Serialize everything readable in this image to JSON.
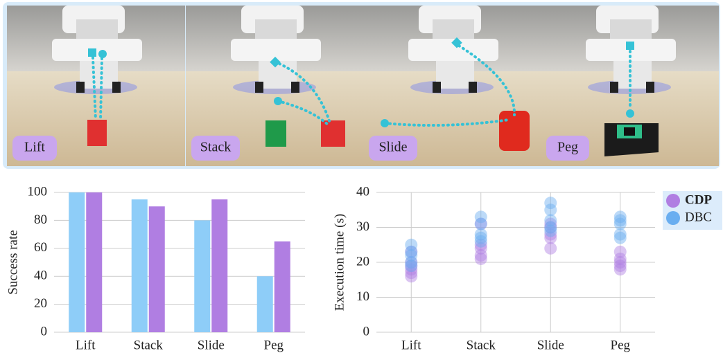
{
  "panels": [
    "Lift",
    "Stack",
    "Slide",
    "Peg"
  ],
  "chart_data": [
    {
      "type": "bar",
      "ylabel": "Success rate",
      "categories": [
        "Lift",
        "Stack",
        "Slide",
        "Peg"
      ],
      "series": [
        {
          "color": "#8ecdf8",
          "values": [
            100,
            95,
            80,
            40
          ]
        },
        {
          "color": "#b07ee2",
          "values": [
            100,
            90,
            95,
            65
          ]
        }
      ],
      "ylim": [
        0,
        100
      ],
      "yticks": [
        0,
        20,
        40,
        60,
        80,
        100
      ],
      "grid": true
    },
    {
      "type": "scatter",
      "ylabel": "Execution time (s)",
      "categories": [
        "Lift",
        "Stack",
        "Slide",
        "Peg"
      ],
      "series": [
        {
          "name": "CDP",
          "color": "#b07ee2",
          "values": [
            [
              23,
              20,
              19,
              18,
              17,
              16
            ],
            [
              31,
              25,
              24,
              22,
              21
            ],
            [
              31,
              30,
              28,
              27,
              24
            ],
            [
              23,
              21,
              20,
              19,
              18
            ]
          ]
        },
        {
          "name": "DBC",
          "color": "#6aaef0",
          "values": [
            [
              25,
              23,
              22,
              20,
              19
            ],
            [
              33,
              31,
              28,
              27,
              26
            ],
            [
              37,
              35,
              32,
              30,
              29
            ],
            [
              33,
              32,
              31,
              28,
              27
            ]
          ]
        }
      ],
      "ylim": [
        0,
        40
      ],
      "yticks": [
        0,
        10,
        20,
        30,
        40
      ],
      "grid": true
    }
  ]
}
